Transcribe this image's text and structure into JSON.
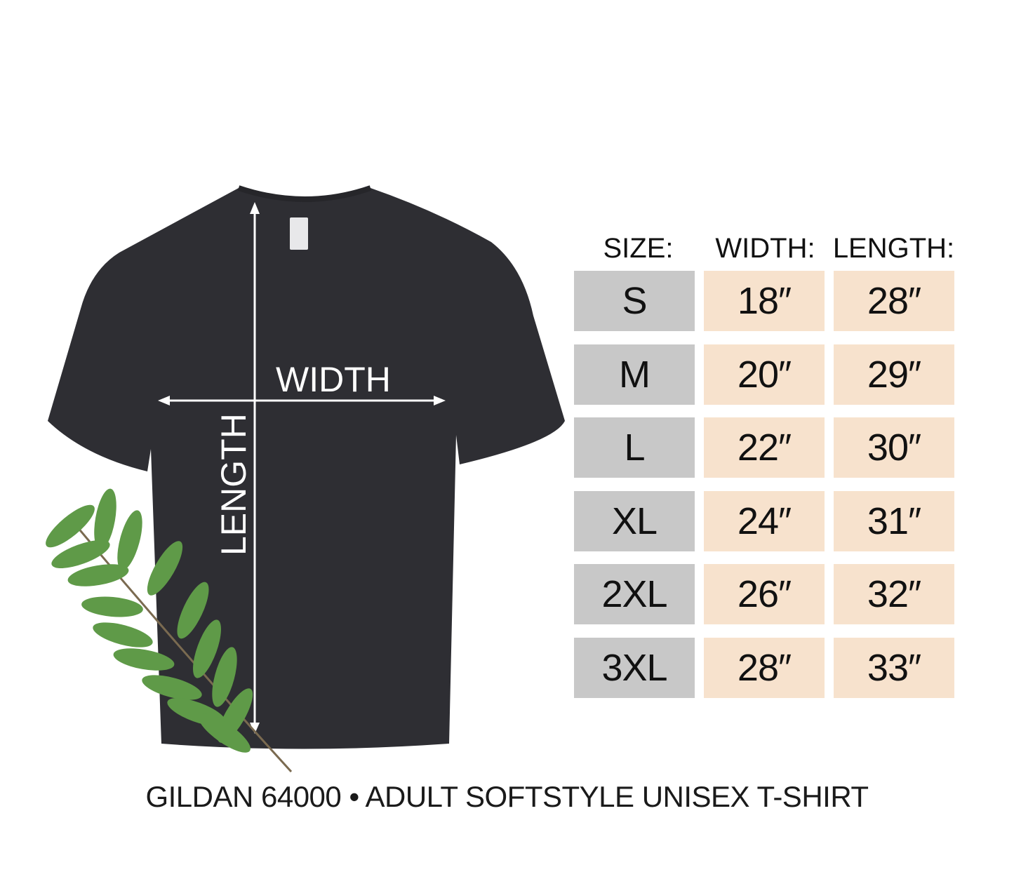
{
  "headers": {
    "size": "SIZE:",
    "width": "WIDTH:",
    "length": "LENGTH:"
  },
  "rows": [
    {
      "size": "S",
      "width": "18″",
      "length": "28″"
    },
    {
      "size": "M",
      "width": "20″",
      "length": "29″"
    },
    {
      "size": "L",
      "width": "22″",
      "length": "30″"
    },
    {
      "size": "XL",
      "width": "24″",
      "length": "31″"
    },
    {
      "size": "2XL",
      "width": "26″",
      "length": "32″"
    },
    {
      "size": "3XL",
      "width": "28″",
      "length": "33″"
    }
  ],
  "diagram": {
    "width_label": "WIDTH",
    "length_label": "LENGTH"
  },
  "footer": "GILDAN 64000 • ADULT SOFTSTYLE UNISEX T-SHIRT",
  "colors": {
    "size_cell": "#c8c8c8",
    "value_cell": "#f7e2cd",
    "shirt": "#2e2e33",
    "leaf": "#5f9a48"
  }
}
